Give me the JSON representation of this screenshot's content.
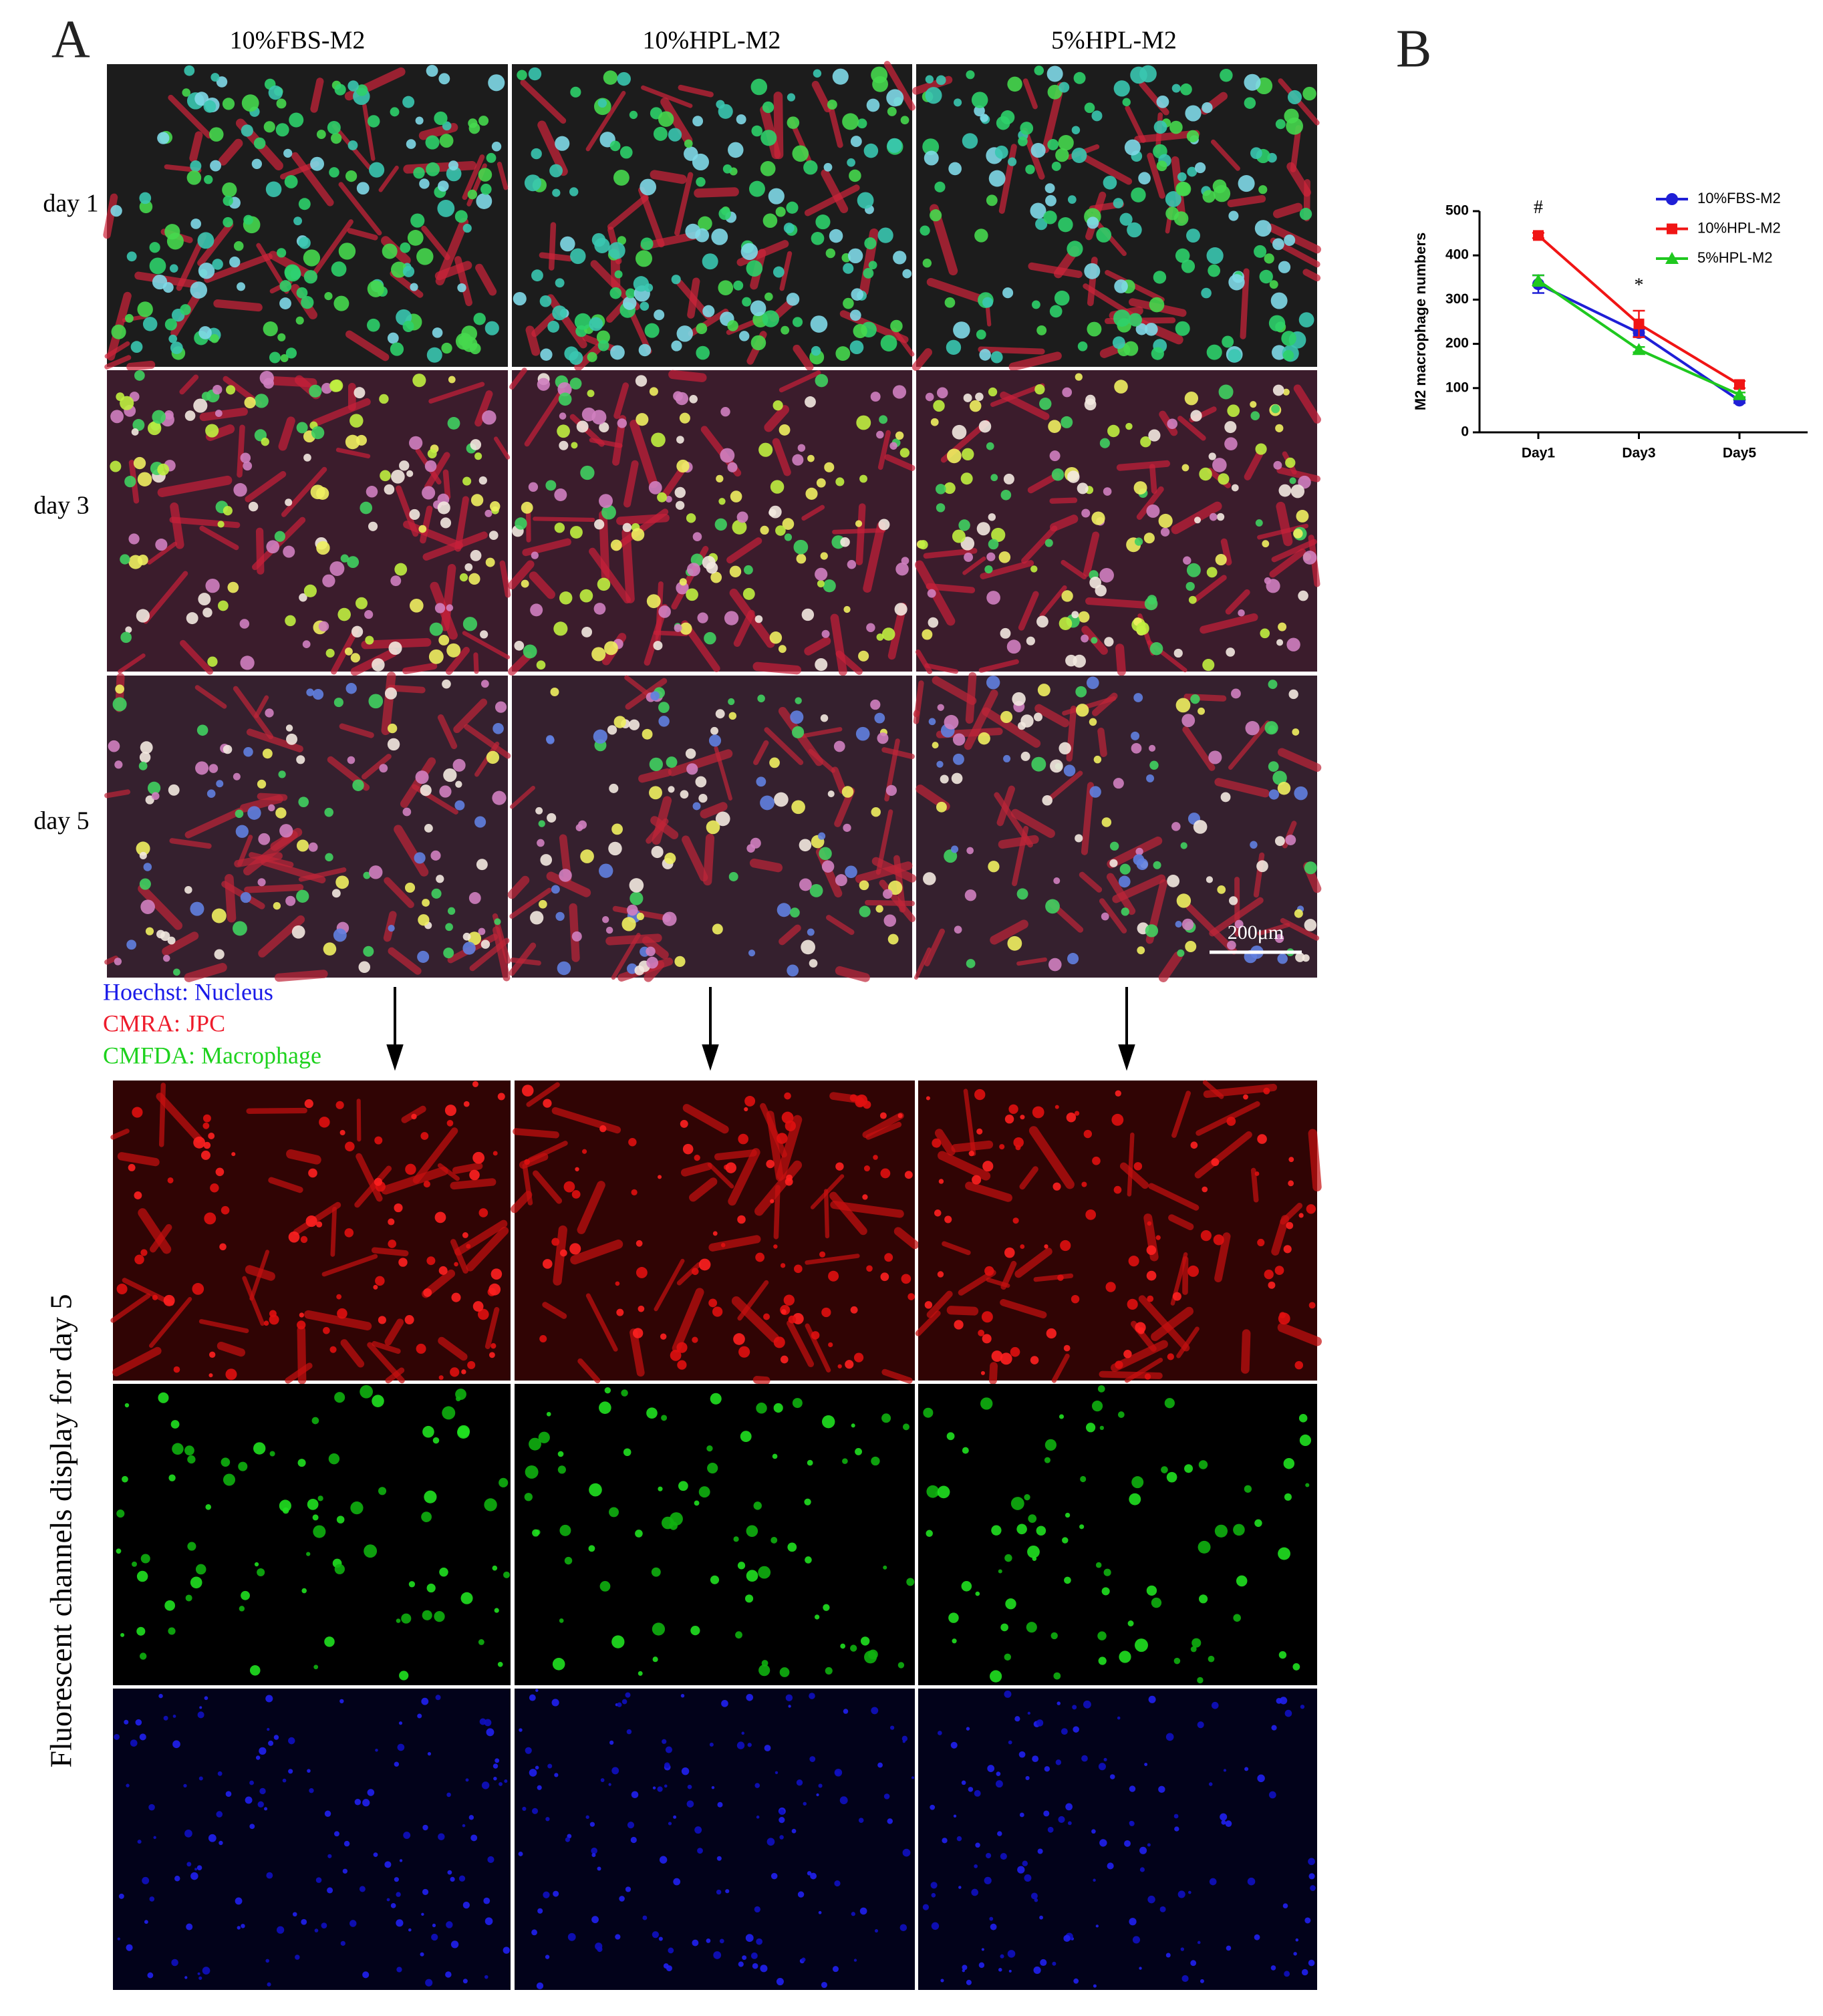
{
  "panel_a": {
    "label": "A",
    "columns": [
      "10%FBS-M2",
      "10%HPL-M2",
      "5%HPL-M2"
    ],
    "rows": [
      "day 1",
      "day 3",
      "day 5"
    ],
    "scale_bar": "200μm",
    "legend": [
      {
        "text": "Hoechst: Nucleus",
        "color": "#1a1ae8"
      },
      {
        "text": "CMRA: JPC",
        "color": "#ee1c2c"
      },
      {
        "text": "CMFDA: Macrophage",
        "color": "#1ed21e"
      }
    ],
    "channels_caption": "Fluorescent channels display for day 5"
  },
  "panel_b": {
    "label": "B"
  },
  "chart_data": {
    "type": "line",
    "ylabel": "M2 macrophage numbers",
    "categories": [
      "Day1",
      "Day3",
      "Day5"
    ],
    "series": [
      {
        "name": "10%FBS-M2",
        "color": "#1f1fd6",
        "marker": "circle",
        "values": [
          335,
          225,
          72
        ],
        "errors": [
          20,
          8,
          6
        ]
      },
      {
        "name": "10%HPL-M2",
        "color": "#f01515",
        "marker": "square",
        "values": [
          445,
          245,
          108
        ],
        "errors": [
          6,
          30,
          8
        ]
      },
      {
        "name": "5%HPL-M2",
        "color": "#1fc81f",
        "marker": "triangle",
        "values": [
          343,
          187,
          85
        ],
        "errors": [
          12,
          6,
          5
        ]
      }
    ],
    "annotations": [
      "#",
      "*"
    ],
    "ylim": [
      0,
      500
    ],
    "yticks": [
      0,
      100,
      200,
      300,
      400,
      500
    ]
  }
}
